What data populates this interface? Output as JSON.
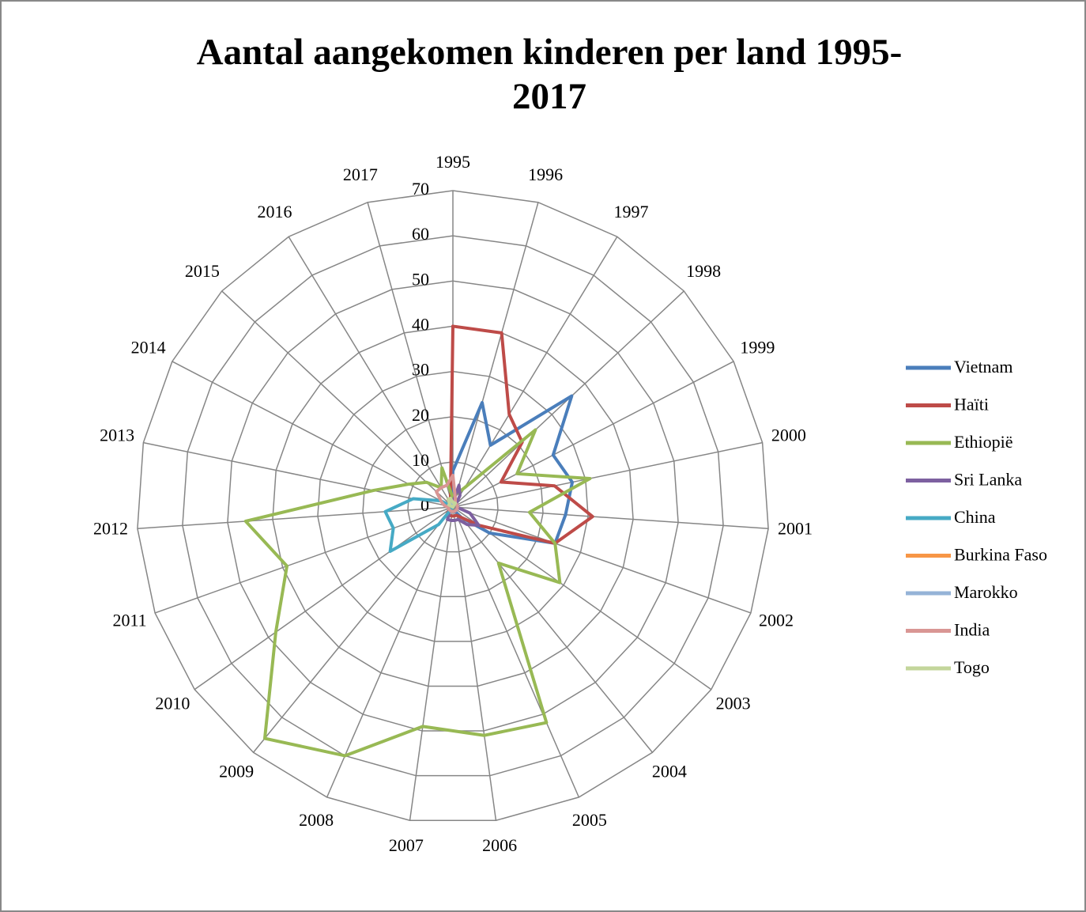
{
  "chart_data": {
    "type": "radar",
    "title": "Aantal aangekomen kinderen per land 1995-2017",
    "categories": [
      "1995",
      "1996",
      "1997",
      "1998",
      "1999",
      "2000",
      "2001",
      "2002",
      "2003",
      "2004",
      "2005",
      "2006",
      "2007",
      "2008",
      "2009",
      "2010",
      "2011",
      "2012",
      "2013",
      "2014",
      "2015",
      "2016",
      "2017"
    ],
    "ylim": [
      0,
      70
    ],
    "yticks": [
      0,
      10,
      20,
      30,
      40,
      50,
      60,
      70
    ],
    "grid": true,
    "legend": "right",
    "series": [
      {
        "name": "Vietnam",
        "color": "#4a7ebb",
        "values": [
          8,
          24,
          16,
          36,
          25,
          27,
          25,
          24,
          10,
          3,
          1,
          1,
          1,
          1,
          1,
          1,
          1,
          1,
          1,
          1,
          1,
          1,
          1
        ]
      },
      {
        "name": "Haïti",
        "color": "#be4b48",
        "values": [
          40,
          40,
          24,
          21,
          12,
          23,
          31,
          24,
          7,
          3,
          2,
          2,
          2,
          2,
          2,
          1,
          1,
          1,
          1,
          1,
          1,
          2,
          2
        ]
      },
      {
        "name": "Ethiopië",
        "color": "#98b954",
        "values": [
          2,
          3,
          5,
          25,
          16,
          31,
          17,
          24,
          29,
          16,
          52,
          51,
          49,
          60,
          66,
          48,
          39,
          46,
          18,
          11,
          8,
          5,
          9
        ]
      },
      {
        "name": "Sri Lanka",
        "color": "#7d60a0",
        "values": [
          1,
          5,
          3,
          1,
          1,
          1,
          1,
          4,
          7,
          5,
          3,
          3,
          3,
          3,
          1,
          1,
          1,
          1,
          1,
          1,
          1,
          1,
          1
        ]
      },
      {
        "name": "China",
        "color": "#46aac5",
        "values": [
          0,
          0,
          0,
          0,
          0,
          0,
          0,
          0,
          0,
          0,
          0,
          0,
          0,
          0,
          5,
          17,
          14,
          15,
          9,
          3,
          0,
          0,
          0
        ]
      },
      {
        "name": "Burkina Faso",
        "color": "#f79646",
        "values": [
          0,
          0,
          0,
          0,
          0,
          0,
          0,
          0,
          0,
          0,
          0,
          0,
          0,
          0,
          0,
          0,
          0,
          0,
          0,
          0,
          1,
          1,
          1
        ]
      },
      {
        "name": "Marokko",
        "color": "#95b3d7",
        "values": [
          0,
          0,
          0,
          0,
          0,
          0,
          0,
          0,
          0,
          0,
          0,
          0,
          0,
          0,
          0,
          0,
          0,
          0,
          0,
          1,
          1,
          1,
          1
        ]
      },
      {
        "name": "India",
        "color": "#d99694",
        "values": [
          7,
          2,
          1,
          1,
          1,
          1,
          1,
          1,
          1,
          1,
          1,
          1,
          1,
          1,
          1,
          1,
          1,
          1,
          2,
          3,
          5,
          5,
          5
        ]
      },
      {
        "name": "Togo",
        "color": "#c3d69b",
        "values": [
          1,
          1,
          1,
          0,
          0,
          0,
          0,
          0,
          0,
          0,
          0,
          0,
          0,
          0,
          0,
          0,
          0,
          0,
          0,
          1,
          1,
          2,
          2
        ]
      }
    ]
  }
}
